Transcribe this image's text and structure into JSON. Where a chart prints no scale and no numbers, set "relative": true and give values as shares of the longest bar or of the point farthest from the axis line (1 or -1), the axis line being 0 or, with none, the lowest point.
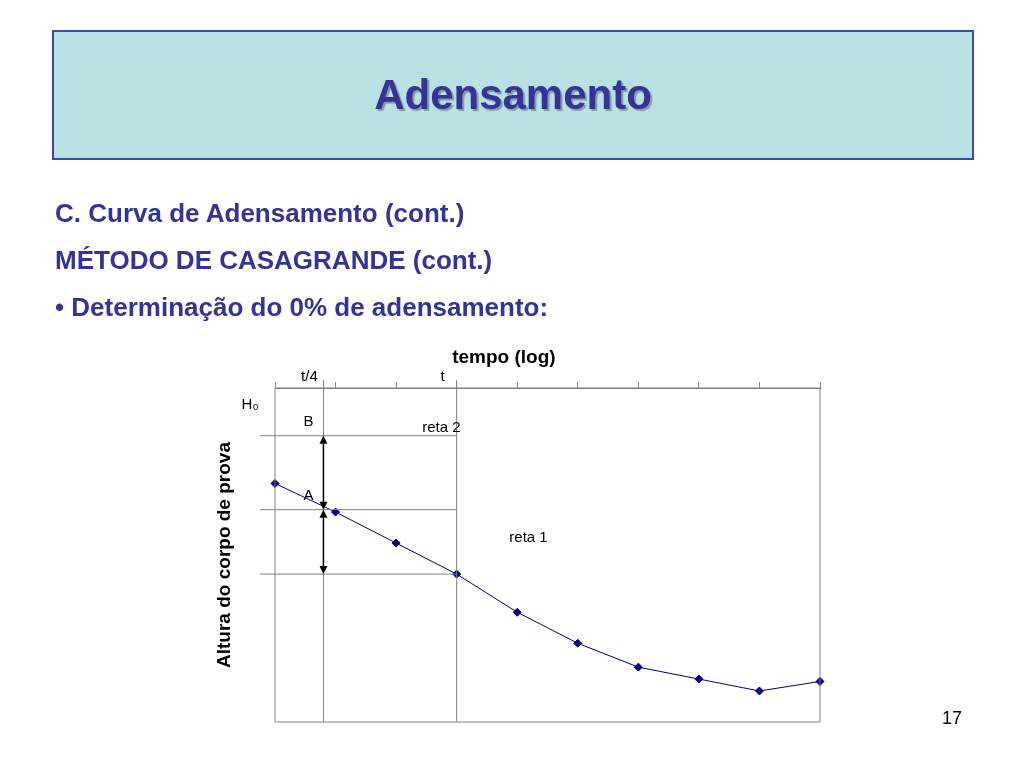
{
  "chart_data": {
    "type": "line",
    "title": "Adensamento",
    "subtitle": "C. Curva de Adensamento (cont.)\nMÉTODO DE CASAGRANDE (cont.)\n• Determinação do 0% de adensamento:",
    "ylabel": "Altura do corpo de prova",
    "relative": true,
    "grid": false,
    "legend": false,
    "marker": "diamond",
    "line_style": "solid",
    "categories": [
      null,
      null,
      null,
      null,
      null,
      null,
      null,
      null,
      null,
      null
    ],
    "series": [
      {
        "color": "#000080",
        "values": [
          1,
          0.88,
          0.75,
          0.62,
          0.46,
          0.33,
          0.23,
          0.18,
          0.13,
          0.17
        ]
      }
    ],
    "ref_lines": [
      {
        "axis": "y",
        "value": 1.2,
        "label": "B",
        "color": "#808080"
      },
      {
        "axis": "y",
        "value": 0.89,
        "label": "A",
        "color": "#808080"
      },
      {
        "axis": "y",
        "value": 0.62,
        "color": "#808080"
      }
    ],
    "annotations": [
      "H₀",
      "reta 2",
      "reta 1",
      "tempo (log)",
      "t/4",
      "t",
      "17"
    ]
  }
}
